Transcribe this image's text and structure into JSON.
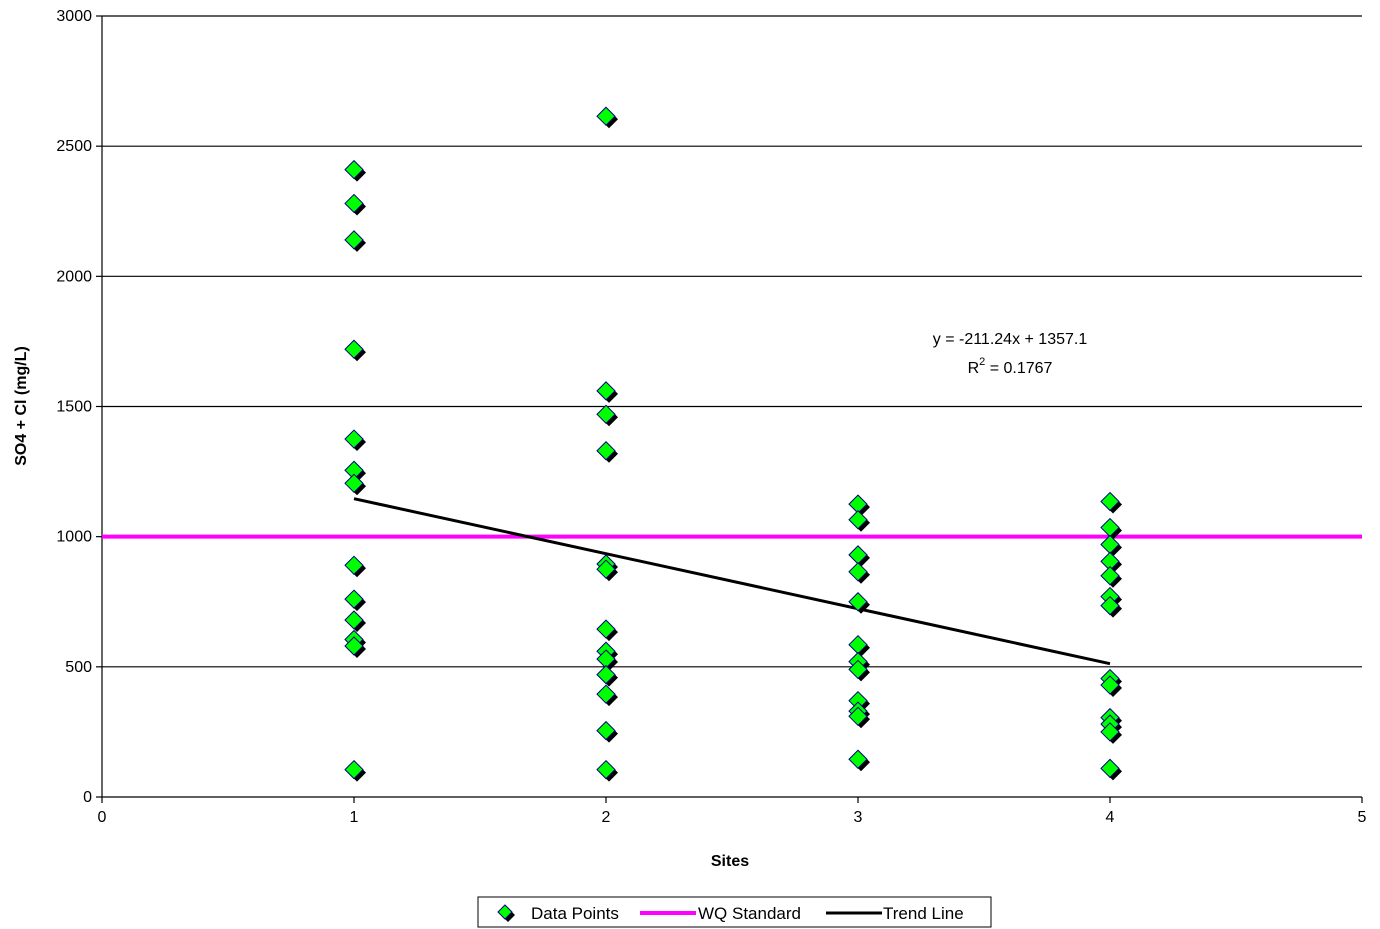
{
  "chart_data": {
    "type": "scatter",
    "title": "",
    "xlabel": "Sites",
    "ylabel": "SO4 + Cl (mg/L)",
    "xlim": [
      0,
      5
    ],
    "ylim": [
      0,
      3000
    ],
    "xticks": [
      0,
      1,
      2,
      3,
      4,
      5
    ],
    "yticks": [
      0,
      500,
      1000,
      1500,
      2000,
      2500,
      3000
    ],
    "grid": "horizontal",
    "legend_position": "bottom",
    "series": [
      {
        "name": "Data Points",
        "kind": "scatter",
        "color": "#00FF00",
        "edge_color": "#000080",
        "shadow_color": "#000000",
        "points": [
          [
            1,
            2410
          ],
          [
            1,
            2280
          ],
          [
            1,
            2140
          ],
          [
            1,
            1720
          ],
          [
            1,
            1375
          ],
          [
            1,
            1255
          ],
          [
            1,
            1205
          ],
          [
            1,
            890
          ],
          [
            1,
            760
          ],
          [
            1,
            680
          ],
          [
            1,
            605
          ],
          [
            1,
            580
          ],
          [
            1,
            105
          ],
          [
            2,
            2615
          ],
          [
            2,
            1560
          ],
          [
            2,
            1470
          ],
          [
            2,
            1330
          ],
          [
            2,
            895
          ],
          [
            2,
            875
          ],
          [
            2,
            645
          ],
          [
            2,
            560
          ],
          [
            2,
            530
          ],
          [
            2,
            470
          ],
          [
            2,
            395
          ],
          [
            2,
            255
          ],
          [
            2,
            105
          ],
          [
            3,
            1125
          ],
          [
            3,
            1065
          ],
          [
            3,
            930
          ],
          [
            3,
            865
          ],
          [
            3,
            750
          ],
          [
            3,
            585
          ],
          [
            3,
            520
          ],
          [
            3,
            490
          ],
          [
            3,
            370
          ],
          [
            3,
            330
          ],
          [
            3,
            310
          ],
          [
            3,
            145
          ],
          [
            4,
            1135
          ],
          [
            4,
            1035
          ],
          [
            4,
            970
          ],
          [
            4,
            905
          ],
          [
            4,
            850
          ],
          [
            4,
            770
          ],
          [
            4,
            735
          ],
          [
            4,
            455
          ],
          [
            4,
            430
          ],
          [
            4,
            305
          ],
          [
            4,
            280
          ],
          [
            4,
            250
          ],
          [
            4,
            110
          ]
        ]
      },
      {
        "name": "WQ Standard",
        "kind": "line",
        "color": "#FF00FF",
        "points": [
          [
            0,
            1000
          ],
          [
            5,
            1000
          ]
        ]
      },
      {
        "name": "Trend Line",
        "kind": "line",
        "color": "#000000",
        "points": [
          [
            1,
            1145.86
          ],
          [
            4,
            512.14
          ]
        ]
      }
    ],
    "annotations": {
      "equation": "y = -211.24x + 1357.1",
      "r2_prefix": "R",
      "r2_sup": "2",
      "r2_value": " = 0.1767"
    }
  }
}
